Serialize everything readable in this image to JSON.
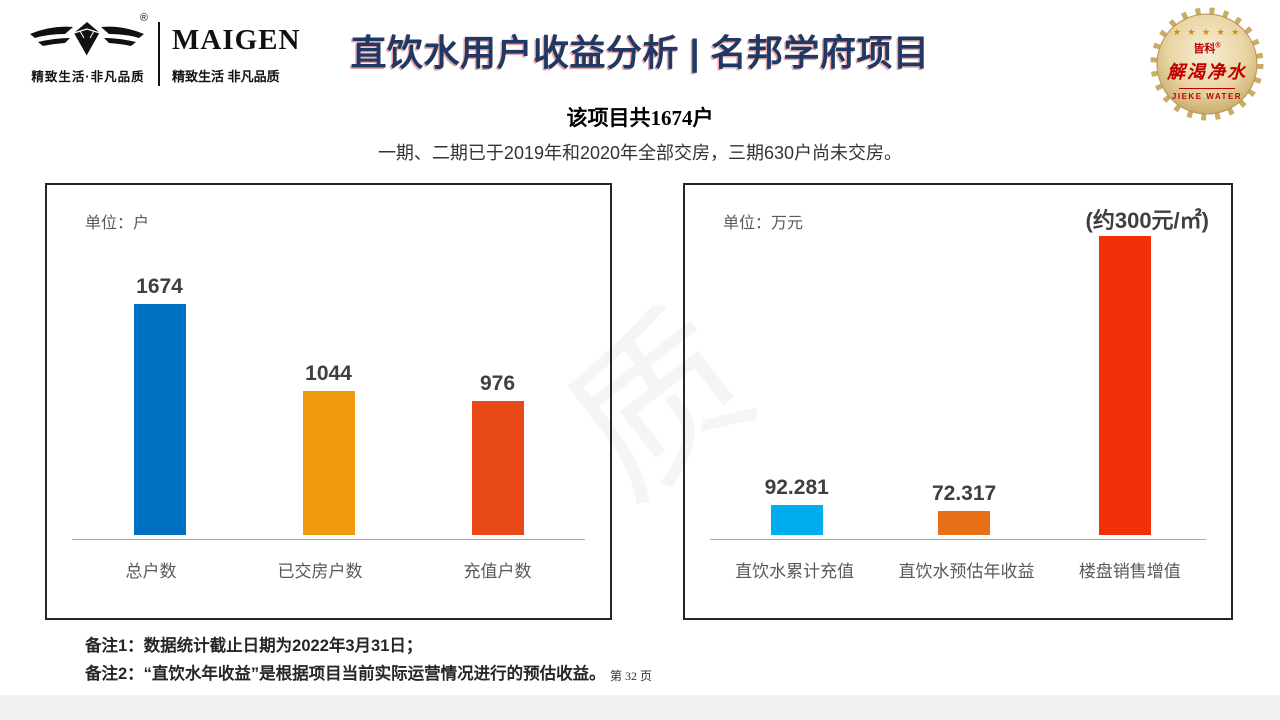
{
  "header": {
    "logo": {
      "tagline": "精致生活·非凡品质",
      "registered_mark": "®"
    },
    "brand": {
      "name": "MAIGEN",
      "tagline": "精致生活  非凡品质"
    },
    "title": "直饮水用户收益分析 | 名邦学府项目",
    "badge": {
      "stars": "★ ★ ★ ★ ★",
      "company": "皆科",
      "registered_mark": "®",
      "name": "解渴净水",
      "english": "JIEKE WATER"
    }
  },
  "intro": {
    "line1": "该项目共1674户",
    "line2": "一期、二期已于2019年和2020年全部交房，三期630户尚未交房。"
  },
  "chart_data": [
    {
      "type": "bar",
      "unit_label": "单位：户",
      "categories": [
        "总户数",
        "已交房户数",
        "充值户数"
      ],
      "values": [
        1674,
        1044,
        976
      ],
      "value_labels": [
        "1674",
        "1044",
        "976"
      ],
      "colors": [
        "#0070C0",
        "#F09B0E",
        "#E94917"
      ],
      "ylim": [
        0,
        2250
      ],
      "grid": false,
      "legend": false,
      "annotation": ""
    },
    {
      "type": "bar",
      "unit_label": "单位：万元",
      "categories": [
        "直饮水累计充值",
        "直饮水预估年收益",
        "楼盘销售增值"
      ],
      "values": [
        92.281,
        72.317,
        916
      ],
      "value_labels": [
        "92.281",
        "72.317",
        ""
      ],
      "values_estimated": [
        false,
        false,
        true
      ],
      "colors": [
        "#00AEEF",
        "#E87017",
        "#F23008"
      ],
      "ylim": [
        0,
        950
      ],
      "grid": false,
      "legend": false,
      "annotation": "(约300元/㎡)"
    }
  ],
  "watermark_glyph": "质",
  "footer": {
    "note1": "备注1：数据统计截止日期为2022年3月31日；",
    "note2": "备注2：“直饮水年收益”是根据项目当前实际运营情况进行的预估收益。",
    "page": "第 32 页"
  },
  "colors": {
    "title_text": "#1F3864",
    "title_shadow_red": "#C00000",
    "badge_red": "#C00000",
    "badge_gold": "#D8BC7A",
    "axis_line": "#A6A6A6",
    "box_border": "#262626"
  }
}
